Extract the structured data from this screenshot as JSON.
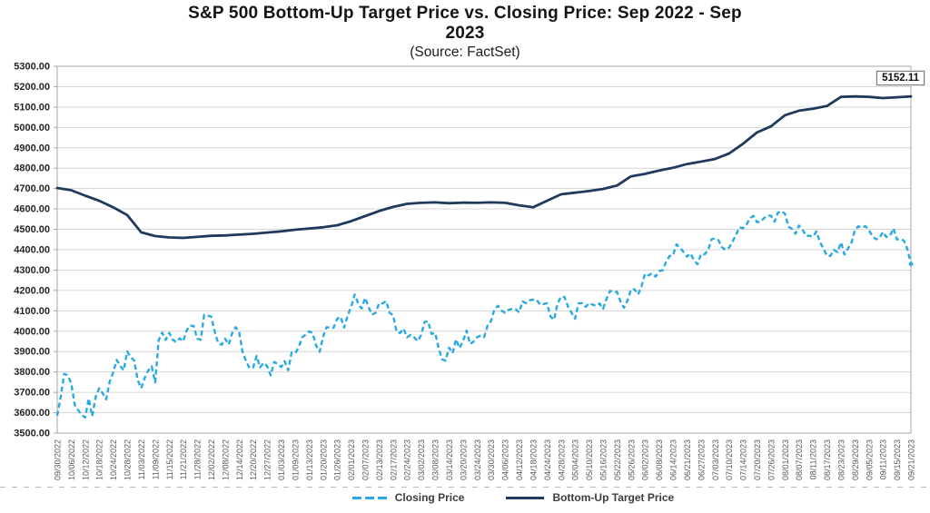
{
  "chart": {
    "title_line1": "S&P 500 Bottom-Up Target Price vs. Closing Price: Sep 2022 - Sep",
    "title_line2": "2023",
    "subtitle": "(Source: FactSet)",
    "annotation_value": "5152.11"
  },
  "legend": {
    "items": [
      {
        "label": "Closing Price",
        "color": "#29A9E1",
        "style": "dashed"
      },
      {
        "label": "Bottom-Up Target Price",
        "color": "#20395E",
        "style": "solid"
      }
    ]
  },
  "chart_data": {
    "type": "line",
    "title": "S&P 500 Bottom-Up Target Price vs. Closing Price: Sep 2022 - Sep 2023",
    "subtitle": "(Source: FactSet)",
    "grid": "horizontal",
    "legend_position": "bottom",
    "y_axis": {
      "min": 3500,
      "max": 5300,
      "tick_step": 100,
      "tick_labels": [
        "5300.00",
        "5200.00",
        "5100.00",
        "5000.00",
        "4900.00",
        "4800.00",
        "4700.00",
        "4600.00",
        "4500.00",
        "4400.00",
        "4300.00",
        "4200.00",
        "4100.00",
        "4000.00",
        "3900.00",
        "3800.00",
        "3700.00",
        "3600.00",
        "3500.00"
      ]
    },
    "x_axis": {
      "points_per_tick": 4,
      "tick_labels": [
        "09/30/2022",
        "10/06/2022",
        "10/12/2022",
        "10/18/2022",
        "10/24/2022",
        "10/28/2022",
        "11/03/2022",
        "11/09/2022",
        "11/15/2022",
        "11/21/2022",
        "11/28/2022",
        "12/02/2022",
        "12/08/2022",
        "12/14/2022",
        "12/20/2022",
        "12/27/2022",
        "01/03/2023",
        "01/09/2023",
        "01/13/2023",
        "01/20/2023",
        "01/26/2023",
        "02/01/2023",
        "02/07/2023",
        "02/13/2023",
        "02/17/2023",
        "02/24/2023",
        "03/02/2023",
        "03/08/2023",
        "03/14/2023",
        "03/20/2023",
        "03/24/2023",
        "03/30/2023",
        "04/06/2023",
        "04/12/2023",
        "04/18/2023",
        "04/24/2023",
        "04/28/2023",
        "05/04/2023",
        "05/10/2023",
        "05/16/2023",
        "05/22/2023",
        "05/26/2023",
        "06/02/2023",
        "06/08/2023",
        "06/14/2023",
        "06/21/2023",
        "06/27/2023",
        "07/03/2023",
        "07/10/2023",
        "07/14/2023",
        "07/20/2023",
        "07/26/2023",
        "08/01/2023",
        "08/07/2023",
        "08/11/2023",
        "08/17/2023",
        "08/23/2023",
        "08/29/2023",
        "09/05/2023",
        "09/11/2023",
        "09/15/2023",
        "09/21/2023"
      ]
    },
    "series": [
      {
        "name": "Closing Price",
        "color": "#29A9E1",
        "style": "dashed",
        "values": [
          3585.62,
          3678.43,
          3790.93,
          3783.28,
          3744.52,
          3639.66,
          3612.39,
          3588.84,
          3577.03,
          3669.91,
          3583.07,
          3677.95,
          3719.98,
          3695.16,
          3665.78,
          3752.75,
          3797.34,
          3859.11,
          3830.6,
          3807.3,
          3901.06,
          3871.98,
          3856.1,
          3759.69,
          3719.89,
          3770.55,
          3806.8,
          3828.11,
          3748.57,
          3956.37,
          3992.93,
          3957.25,
          3991.73,
          3958.79,
          3946.56,
          3965.34,
          3949.94,
          4003.58,
          4027.26,
          4026.12,
          3963.94,
          3957.63,
          4080.11,
          4076.57,
          4071.7,
          3998.84,
          3941.26,
          3933.92,
          3963.51,
          3934.38,
          3990.56,
          4019.65,
          3995.32,
          3895.75,
          3852.36,
          3817.66,
          3821.62,
          3878.44,
          3822.39,
          3844.82,
          3829.25,
          3783.22,
          3849.28,
          3839.5,
          3824.14,
          3852.97,
          3808.1,
          3895.08,
          3892.09,
          3919.25,
          3969.61,
          3983.17,
          3999.09,
          3990.97,
          3928.86,
          3898.85,
          3972.61,
          4019.81,
          4016.95,
          4016.22,
          4060.43,
          4070.56,
          4017.77,
          4076.6,
          4119.21,
          4179.76,
          4136.48,
          4111.08,
          4164.0,
          4117.86,
          4081.5,
          4090.46,
          4137.29,
          4136.13,
          4147.6,
          4090.41,
          4079.09,
          3997.34,
          3991.05,
          4012.32,
          3970.04,
          3982.24,
          3970.15,
          3951.39,
          3981.35,
          4045.64,
          4048.42,
          3986.37,
          3992.01,
          3918.32,
          3861.59,
          3855.76,
          3919.29,
          3891.93,
          3960.28,
          3916.64,
          3951.57,
          4002.87,
          3936.97,
          3948.72,
          3970.99,
          3977.53,
          3971.27,
          4027.81,
          4050.83,
          4109.31,
          4124.51,
          4100.6,
          4090.38,
          4105.02,
          4109.11,
          4108.94,
          4091.95,
          4146.22,
          4137.64,
          4151.32,
          4154.87,
          4154.52,
          4129.79,
          4133.52,
          4137.04,
          4071.63,
          4055.99,
          4135.35,
          4169.48,
          4167.87,
          4119.58,
          4090.75,
          4061.22,
          4136.25,
          4138.12,
          4119.17,
          4137.64,
          4130.62,
          4124.08,
          4136.28,
          4109.9,
          4158.77,
          4198.05,
          4191.98,
          4192.63,
          4145.58,
          4115.24,
          4151.28,
          4205.45,
          4205.52,
          4179.83,
          4221.02,
          4282.37,
          4273.79,
          4283.85,
          4267.52,
          4293.93,
          4298.86,
          4338.93,
          4369.01,
          4372.59,
          4425.84,
          4409.59,
          4388.71,
          4365.69,
          4381.89,
          4348.33,
          4328.82,
          4378.41,
          4376.86,
          4396.44,
          4450.38,
          4455.59,
          4446.82,
          4411.59,
          4398.95,
          4409.53,
          4439.26,
          4472.16,
          4510.04,
          4505.42,
          4522.79,
          4554.98,
          4565.72,
          4534.87,
          4536.34,
          4554.64,
          4567.46,
          4566.75,
          4537.41,
          4582.23,
          4588.96,
          4576.73,
          4513.39,
          4501.89,
          4478.03,
          4518.44,
          4499.38,
          4467.71,
          4468.83,
          4464.05,
          4489.72,
          4437.86,
          4404.33,
          4370.36,
          4369.71,
          4399.77,
          4387.55,
          4436.01,
          4376.31,
          4405.71,
          4433.31,
          4497.63,
          4514.87,
          4507.66,
          4515.77,
          4496.83,
          4465.48,
          4451.14,
          4457.49,
          4487.46,
          4461.9,
          4467.44,
          4505.1,
          4450.32,
          4453.53,
          4443.95,
          4402.2,
          4330.0
        ]
      },
      {
        "name": "Bottom-Up Target Price",
        "color": "#20395E",
        "style": "solid",
        "values_at_ticks": [
          4703,
          4692,
          4665,
          4640,
          4608,
          4570,
          4485,
          4467,
          4460,
          4458,
          4463,
          4468,
          4470,
          4474,
          4478,
          4484,
          4490,
          4498,
          4504,
          4510,
          4520,
          4540,
          4565,
          4590,
          4610,
          4625,
          4630,
          4632,
          4628,
          4631,
          4630,
          4632,
          4630,
          4618,
          4608,
          4640,
          4672,
          4680,
          4688,
          4698,
          4715,
          4760,
          4772,
          4788,
          4802,
          4820,
          4832,
          4845,
          4872,
          4920,
          4975,
          5005,
          5060,
          5082,
          5092,
          5105,
          5150,
          5152,
          5150,
          5144,
          5148,
          5152.11
        ]
      }
    ],
    "annotation": {
      "text": "5152.11",
      "attached_to": "Bottom-Up Target Price",
      "position": "top-right"
    }
  }
}
